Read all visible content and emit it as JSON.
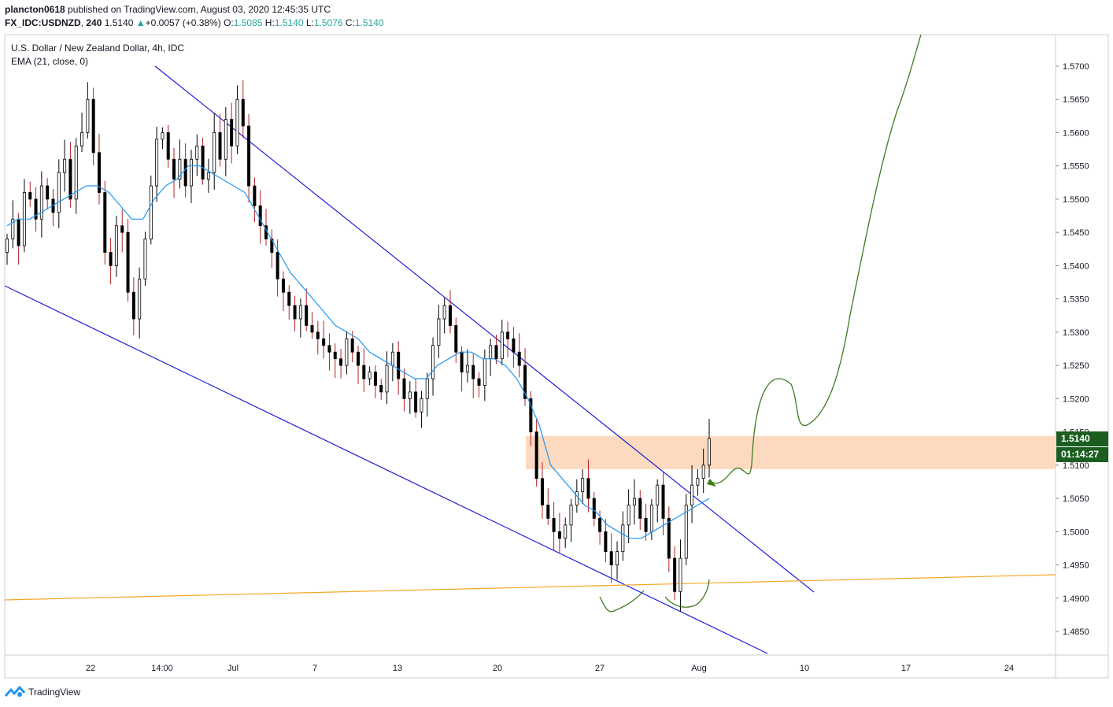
{
  "header": {
    "user": "plancton0618",
    "published_text": "published on TradingView.com, August 03, 2020 12:45:35 UTC",
    "symbol": "FX_IDC:USDNZD",
    "interval": "240",
    "last": "1.5140",
    "change": "+0.0057 (+0.38%)",
    "open_label": "O:",
    "open": "1.5085",
    "high_label": "H:",
    "high": "1.5140",
    "low_label": "L:",
    "low": "1.5076",
    "close_label": "C:",
    "close": "1.5140"
  },
  "legend": {
    "title": "U.S. Dollar / New Zealand Dollar, 4h, IDC",
    "indicator": "EMA (21, close, 0)"
  },
  "price_tags": {
    "last_price": "1.5140",
    "countdown": "01:14:27"
  },
  "footer": {
    "brand": "TradingView"
  },
  "colors": {
    "up": "#26a69a",
    "candle": "#000000",
    "wick_down": "#b22222",
    "ema": "#2196f3",
    "channel": "#1f1fd6",
    "support": "#f5a623",
    "zone": "#fbd4b4",
    "projection": "#3f7a1f",
    "tag_bg": "#1b5e20"
  },
  "chart_data": {
    "type": "candlestick",
    "y_axis": {
      "ticks": [
        "1.5700",
        "1.5650",
        "1.5600",
        "1.5550",
        "1.5500",
        "1.5450",
        "1.5400",
        "1.5350",
        "1.5300",
        "1.5250",
        "1.5200",
        "1.5150",
        "1.5100",
        "1.5050",
        "1.5000",
        "1.4950",
        "1.4900",
        "1.4850"
      ],
      "range": [
        1.4815,
        1.575
      ],
      "side": "right"
    },
    "x_axis": {
      "ticks": [
        "22",
        "14:00",
        "Jul",
        "7",
        "13",
        "20",
        "27",
        "Aug",
        "10",
        "17",
        "24"
      ]
    },
    "grid": false,
    "candles_close": [
      1.544,
      1.547,
      1.543,
      1.551,
      1.55,
      1.547,
      1.552,
      1.55,
      1.548,
      1.554,
      1.556,
      1.55,
      1.558,
      1.56,
      1.565,
      1.557,
      1.551,
      1.542,
      1.54,
      1.546,
      1.545,
      1.536,
      1.532,
      1.538,
      1.544,
      1.552,
      1.559,
      1.56,
      1.556,
      1.553,
      1.556,
      1.552,
      1.556,
      1.558,
      1.553,
      1.554,
      1.56,
      1.556,
      1.562,
      1.558,
      1.565,
      1.561,
      1.552,
      1.549,
      1.546,
      1.544,
      1.542,
      1.538,
      1.536,
      1.534,
      1.532,
      1.534,
      1.531,
      1.53,
      1.529,
      1.528,
      1.527,
      1.526,
      1.525,
      1.529,
      1.527,
      1.525,
      1.523,
      1.524,
      1.522,
      1.521,
      1.525,
      1.527,
      1.523,
      1.52,
      1.521,
      1.518,
      1.52,
      1.523,
      1.528,
      1.532,
      1.534,
      1.531,
      1.527,
      1.524,
      1.525,
      1.523,
      1.522,
      1.526,
      1.528,
      1.526,
      1.53,
      1.529,
      1.527,
      1.525,
      1.52,
      1.515,
      1.508,
      1.504,
      1.502,
      1.5,
      1.499,
      1.501,
      1.504,
      1.506,
      1.508,
      1.505,
      1.502,
      1.5,
      1.497,
      1.495,
      1.497,
      1.501,
      1.504,
      1.505,
      1.502,
      1.5,
      1.504,
      1.507,
      1.502,
      1.496,
      1.491,
      1.496,
      1.504,
      1.507,
      1.508,
      1.51,
      1.514
    ],
    "ema_close": [
      1.546,
      1.547,
      1.547,
      1.548,
      1.549,
      1.55,
      1.551,
      1.552,
      1.552,
      1.551,
      1.549,
      1.547,
      1.547,
      1.55,
      1.552,
      1.553,
      1.555,
      1.555,
      1.554,
      1.553,
      1.552,
      1.551,
      1.548,
      1.545,
      1.542,
      1.539,
      1.537,
      1.535,
      1.533,
      1.531,
      1.53,
      1.529,
      1.527,
      1.526,
      1.525,
      1.524,
      1.523,
      1.523,
      1.525,
      1.526,
      1.527,
      1.527,
      1.526,
      1.526,
      1.525,
      1.523,
      1.52,
      1.516,
      1.51,
      1.508,
      1.506,
      1.504,
      1.503,
      1.501,
      1.5,
      1.499,
      1.499,
      1.5,
      1.501,
      1.502,
      1.503,
      1.504,
      1.505
    ],
    "zone": [
      1.5094,
      1.5144
    ],
    "series": []
  }
}
